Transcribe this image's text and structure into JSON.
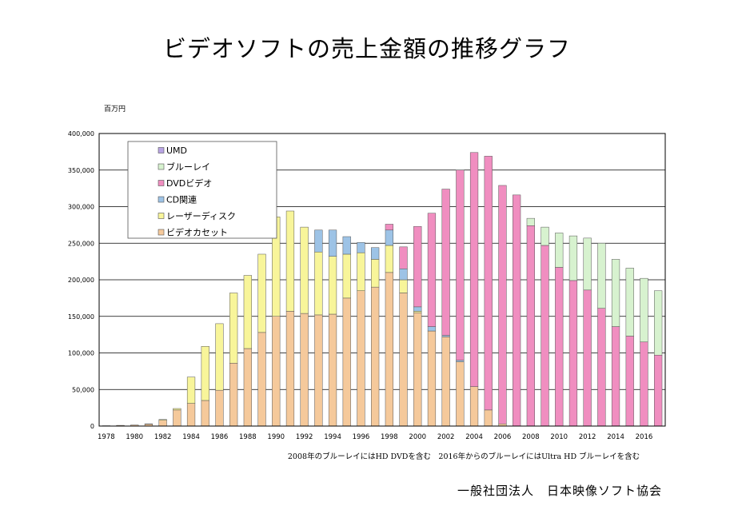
{
  "page": {
    "title": "ビデオソフトの売上金額の推移グラフ",
    "note": "2008年のブルーレイにはHD DVDを含む　2016年からのブルーレイにはUltra HD ブルーレイを含む",
    "source": "一般社団法人　日本映像ソフト協会"
  },
  "chart_data": {
    "type": "bar",
    "stacked": true,
    "unit_label": "百万円",
    "ylim": [
      0,
      400000
    ],
    "yticks": [
      "0",
      "50,000",
      "100,000",
      "150,000",
      "200,000",
      "250,000",
      "300,000",
      "350,000",
      "400,000"
    ],
    "ytick_values": [
      0,
      50000,
      100000,
      150000,
      200000,
      250000,
      300000,
      350000,
      400000
    ],
    "grid": true,
    "legend_position": "top-left",
    "categories": [
      "1978",
      "1979",
      "1980",
      "1981",
      "1982",
      "1983",
      "1984",
      "1985",
      "1986",
      "1987",
      "1988",
      "1989",
      "1990",
      "1991",
      "1992",
      "1993",
      "1994",
      "1995",
      "1996",
      "1997",
      "1998",
      "1999",
      "2000",
      "2001",
      "2002",
      "2003",
      "2004",
      "2005",
      "2006",
      "2007",
      "2008",
      "2009",
      "2010",
      "2011",
      "2012",
      "2013",
      "2014",
      "2015",
      "2016",
      "2017"
    ],
    "xtick_labels": [
      "1978",
      "1980",
      "1982",
      "1984",
      "1986",
      "1988",
      "1990",
      "1992",
      "1994",
      "1996",
      "1998",
      "2000",
      "2002",
      "2004",
      "2006",
      "2008",
      "2010",
      "2012",
      "2014",
      "2016"
    ],
    "colors": {
      "video": "#f5c99b",
      "laser": "#f8f59a",
      "cd": "#9dc3e6",
      "dvd": "#f08ec0",
      "bluray": "#d7f2cf",
      "umd": "#b8a4e4"
    },
    "series": [
      {
        "key": "video",
        "name": "ビデオカセット",
        "values": [
          500,
          1000,
          1500,
          2500,
          8000,
          22000,
          31000,
          35000,
          49000,
          86000,
          106000,
          128000,
          150000,
          157000,
          154000,
          152000,
          153000,
          175000,
          185000,
          190000,
          210000,
          182000,
          155000,
          130000,
          122000,
          88000,
          54000,
          22000,
          3000,
          0,
          0,
          0,
          0,
          0,
          0,
          0,
          0,
          0,
          0,
          0
        ]
      },
      {
        "key": "laser",
        "name": "レーザーディスク",
        "values": [
          0,
          0,
          0,
          500,
          1000,
          2000,
          36000,
          74000,
          91000,
          96000,
          100000,
          107000,
          136000,
          137000,
          118000,
          86000,
          79000,
          60000,
          52000,
          38000,
          37000,
          18000,
          2000,
          0,
          0,
          0,
          0,
          0,
          0,
          0,
          0,
          0,
          0,
          0,
          0,
          0,
          0,
          0,
          0,
          0
        ]
      },
      {
        "key": "cd",
        "name": "CD関連",
        "values": [
          0,
          0,
          0,
          0,
          0,
          0,
          0,
          0,
          0,
          0,
          0,
          0,
          0,
          0,
          0,
          30000,
          36000,
          24000,
          14000,
          16000,
          21000,
          15000,
          6000,
          6000,
          2000,
          2000,
          0,
          0,
          0,
          0,
          0,
          0,
          0,
          0,
          0,
          0,
          0,
          0,
          0,
          0
        ]
      },
      {
        "key": "dvd",
        "name": "DVDビデオ",
        "values": [
          0,
          0,
          0,
          0,
          0,
          0,
          0,
          0,
          0,
          0,
          0,
          0,
          0,
          0,
          0,
          0,
          0,
          0,
          0,
          0,
          8000,
          30000,
          110000,
          155000,
          200000,
          260000,
          320000,
          347000,
          326000,
          316000,
          274000,
          247000,
          217000,
          199000,
          186000,
          161000,
          136000,
          123000,
          115000,
          97000
        ]
      },
      {
        "key": "bluray",
        "name": "ブルーレイ",
        "values": [
          0,
          0,
          0,
          0,
          0,
          0,
          0,
          0,
          0,
          0,
          0,
          0,
          0,
          0,
          0,
          0,
          0,
          0,
          0,
          0,
          0,
          0,
          0,
          0,
          0,
          0,
          0,
          0,
          0,
          0,
          10000,
          25000,
          47000,
          61000,
          71000,
          89000,
          92000,
          93000,
          87000,
          88000
        ]
      },
      {
        "key": "umd",
        "name": "UMD",
        "values": [
          0,
          0,
          0,
          0,
          0,
          0,
          0,
          0,
          0,
          0,
          0,
          0,
          0,
          0,
          0,
          0,
          0,
          0,
          0,
          0,
          0,
          0,
          0,
          0,
          0,
          0,
          0,
          0,
          0,
          0,
          0,
          0,
          0,
          0,
          0,
          0,
          0,
          0,
          0,
          0
        ]
      }
    ],
    "legend_order": [
      "umd",
      "bluray",
      "dvd",
      "cd",
      "laser",
      "video"
    ]
  }
}
